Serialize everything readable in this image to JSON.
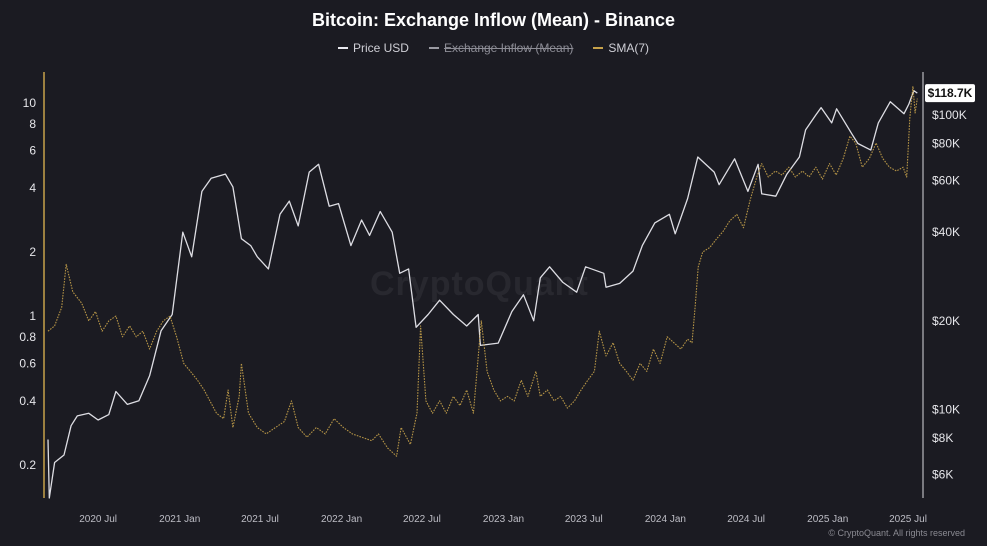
{
  "title": "Bitcoin: Exchange Inflow (Mean) - Binance",
  "legend": [
    {
      "label": "Price USD",
      "color": "#e8e8ee",
      "hidden": false
    },
    {
      "label": "Exchange Inflow (Mean)",
      "color": "#9a9aa2",
      "hidden": true
    },
    {
      "label": "SMA(7)",
      "color": "#c7a24a",
      "hidden": false
    }
  ],
  "watermark": "CryptoQuant",
  "copyright": "© CryptoQuant. All rights reserved",
  "colors": {
    "background": "#1b1b22",
    "price": "#e8e8ee",
    "sma": "#c7a24a",
    "axis_bar": "#c7a24a",
    "text": "#e6e6ea"
  },
  "chart_data": {
    "type": "line",
    "title": "Bitcoin: Exchange Inflow (Mean) - Binance",
    "grid": false,
    "legend_position": "top-center",
    "x_axis": {
      "range": [
        "2020-03",
        "2025-07"
      ],
      "tick_labels": [
        {
          "label": "2020 Jul",
          "date": "2020-07"
        },
        {
          "label": "2021 Jan",
          "date": "2021-01"
        },
        {
          "label": "2021 Jul",
          "date": "2021-07"
        },
        {
          "label": "2022 Jan",
          "date": "2022-01"
        },
        {
          "label": "2022 Jul",
          "date": "2022-07"
        },
        {
          "label": "2023 Jan",
          "date": "2023-01"
        },
        {
          "label": "2023 Jul",
          "date": "2023-07"
        },
        {
          "label": "2024 Jan",
          "date": "2024-01"
        },
        {
          "label": "2024 Jul",
          "date": "2024-07"
        },
        {
          "label": "2025 Jan",
          "date": "2025-01"
        },
        {
          "label": "2025 Jul",
          "date": "2025-07"
        }
      ]
    },
    "y_left": {
      "scale": "log",
      "range": [
        0.14,
        14
      ],
      "tick_labels": [
        {
          "label": "10",
          "value": 10
        },
        {
          "label": "8",
          "value": 8
        },
        {
          "label": "6",
          "value": 6
        },
        {
          "label": "4",
          "value": 4
        },
        {
          "label": "2",
          "value": 2
        },
        {
          "label": "1",
          "value": 1
        },
        {
          "label": "0.8",
          "value": 0.8
        },
        {
          "label": "0.6",
          "value": 0.6
        },
        {
          "label": "0.4",
          "value": 0.4
        },
        {
          "label": "0.2",
          "value": 0.2
        }
      ]
    },
    "y_right": {
      "scale": "log",
      "range": [
        5000,
        140000
      ],
      "tick_labels": [
        {
          "label": "$100K",
          "value": 100000
        },
        {
          "label": "$80K",
          "value": 80000
        },
        {
          "label": "$60K",
          "value": 60000
        },
        {
          "label": "$40K",
          "value": 40000
        },
        {
          "label": "$20K",
          "value": 20000
        },
        {
          "label": "$10K",
          "value": 10000
        },
        {
          "label": "$8K",
          "value": 8000
        },
        {
          "label": "$6K",
          "value": 6000
        }
      ],
      "last_value_label": "$118.7K",
      "last_value": 118700
    },
    "series": [
      {
        "name": "Price USD",
        "axis": "right",
        "points": [
          [
            "2020-03-10",
            7900
          ],
          [
            "2020-03-13",
            5000
          ],
          [
            "2020-03-25",
            6600
          ],
          [
            "2020-04-15",
            7000
          ],
          [
            "2020-05-01",
            8800
          ],
          [
            "2020-05-15",
            9500
          ],
          [
            "2020-06-10",
            9700
          ],
          [
            "2020-07-01",
            9200
          ],
          [
            "2020-07-25",
            9600
          ],
          [
            "2020-08-10",
            11500
          ],
          [
            "2020-09-05",
            10400
          ],
          [
            "2020-10-01",
            10700
          ],
          [
            "2020-10-25",
            13000
          ],
          [
            "2020-11-20",
            18500
          ],
          [
            "2020-12-15",
            21000
          ],
          [
            "2021-01-08",
            40000
          ],
          [
            "2021-01-28",
            33000
          ],
          [
            "2021-02-20",
            55000
          ],
          [
            "2021-03-13",
            61000
          ],
          [
            "2021-04-14",
            63000
          ],
          [
            "2021-05-01",
            57000
          ],
          [
            "2021-05-20",
            38000
          ],
          [
            "2021-06-10",
            36000
          ],
          [
            "2021-06-25",
            33000
          ],
          [
            "2021-07-20",
            30000
          ],
          [
            "2021-08-15",
            46000
          ],
          [
            "2021-09-05",
            51000
          ],
          [
            "2021-09-25",
            42000
          ],
          [
            "2021-10-20",
            64000
          ],
          [
            "2021-11-10",
            68000
          ],
          [
            "2021-12-04",
            49000
          ],
          [
            "2021-12-25",
            50000
          ],
          [
            "2022-01-22",
            36000
          ],
          [
            "2022-02-15",
            44000
          ],
          [
            "2022-03-05",
            39000
          ],
          [
            "2022-03-29",
            47000
          ],
          [
            "2022-04-25",
            40000
          ],
          [
            "2022-05-12",
            29000
          ],
          [
            "2022-06-01",
            30000
          ],
          [
            "2022-06-18",
            19000
          ],
          [
            "2022-07-15",
            21000
          ],
          [
            "2022-08-10",
            23500
          ],
          [
            "2022-09-10",
            21000
          ],
          [
            "2022-10-10",
            19200
          ],
          [
            "2022-11-05",
            21000
          ],
          [
            "2022-11-10",
            16500
          ],
          [
            "2022-12-20",
            16800
          ],
          [
            "2023-01-20",
            21500
          ],
          [
            "2023-02-15",
            24500
          ],
          [
            "2023-03-10",
            20000
          ],
          [
            "2023-03-25",
            28000
          ],
          [
            "2023-04-15",
            30500
          ],
          [
            "2023-05-15",
            27000
          ],
          [
            "2023-06-15",
            25000
          ],
          [
            "2023-07-05",
            30500
          ],
          [
            "2023-08-15",
            29000
          ],
          [
            "2023-08-20",
            26000
          ],
          [
            "2023-09-20",
            26800
          ],
          [
            "2023-10-20",
            29500
          ],
          [
            "2023-11-10",
            36000
          ],
          [
            "2023-12-08",
            43000
          ],
          [
            "2024-01-10",
            46000
          ],
          [
            "2024-01-23",
            39500
          ],
          [
            "2024-02-20",
            52000
          ],
          [
            "2024-03-14",
            72000
          ],
          [
            "2024-04-20",
            64000
          ],
          [
            "2024-05-01",
            58000
          ],
          [
            "2024-06-05",
            71000
          ],
          [
            "2024-07-05",
            55000
          ],
          [
            "2024-07-28",
            68000
          ],
          [
            "2024-08-05",
            54000
          ],
          [
            "2024-09-06",
            53000
          ],
          [
            "2024-10-01",
            63000
          ],
          [
            "2024-10-29",
            72000
          ],
          [
            "2024-11-12",
            89000
          ],
          [
            "2024-12-05",
            100000
          ],
          [
            "2024-12-17",
            106000
          ],
          [
            "2025-01-10",
            94000
          ],
          [
            "2025-01-21",
            105000
          ],
          [
            "2025-02-25",
            86000
          ],
          [
            "2025-03-10",
            80000
          ],
          [
            "2025-04-08",
            76000
          ],
          [
            "2025-04-25",
            94000
          ],
          [
            "2025-05-22",
            111000
          ],
          [
            "2025-06-22",
            101000
          ],
          [
            "2025-07-03",
            109000
          ],
          [
            "2025-07-14",
            121000
          ],
          [
            "2025-07-22",
            118700
          ]
        ]
      },
      {
        "name": "SMA(7)",
        "axis": "left",
        "points": [
          [
            "2020-03-10",
            0.85
          ],
          [
            "2020-03-25",
            0.9
          ],
          [
            "2020-04-10",
            1.1
          ],
          [
            "2020-04-20",
            1.75
          ],
          [
            "2020-05-05",
            1.3
          ],
          [
            "2020-05-25",
            1.15
          ],
          [
            "2020-06-10",
            0.95
          ],
          [
            "2020-06-25",
            1.05
          ],
          [
            "2020-07-10",
            0.85
          ],
          [
            "2020-07-25",
            0.95
          ],
          [
            "2020-08-10",
            1.0
          ],
          [
            "2020-08-25",
            0.8
          ],
          [
            "2020-09-10",
            0.9
          ],
          [
            "2020-09-25",
            0.8
          ],
          [
            "2020-10-10",
            0.85
          ],
          [
            "2020-10-25",
            0.7
          ],
          [
            "2020-11-10",
            0.85
          ],
          [
            "2020-11-25",
            0.95
          ],
          [
            "2020-12-10",
            1.0
          ],
          [
            "2020-12-25",
            0.8
          ],
          [
            "2021-01-10",
            0.6
          ],
          [
            "2021-01-25",
            0.55
          ],
          [
            "2021-02-10",
            0.5
          ],
          [
            "2021-02-25",
            0.45
          ],
          [
            "2021-03-10",
            0.4
          ],
          [
            "2021-03-25",
            0.35
          ],
          [
            "2021-04-10",
            0.33
          ],
          [
            "2021-04-20",
            0.45
          ],
          [
            "2021-05-01",
            0.3
          ],
          [
            "2021-05-15",
            0.42
          ],
          [
            "2021-05-20",
            0.6
          ],
          [
            "2021-06-05",
            0.35
          ],
          [
            "2021-06-25",
            0.3
          ],
          [
            "2021-07-15",
            0.28
          ],
          [
            "2021-08-05",
            0.3
          ],
          [
            "2021-08-25",
            0.32
          ],
          [
            "2021-09-10",
            0.4
          ],
          [
            "2021-09-25",
            0.3
          ],
          [
            "2021-10-15",
            0.27
          ],
          [
            "2021-11-05",
            0.3
          ],
          [
            "2021-11-25",
            0.28
          ],
          [
            "2021-12-15",
            0.33
          ],
          [
            "2022-01-05",
            0.3
          ],
          [
            "2022-01-25",
            0.28
          ],
          [
            "2022-02-15",
            0.27
          ],
          [
            "2022-03-10",
            0.26
          ],
          [
            "2022-03-25",
            0.28
          ],
          [
            "2022-04-15",
            0.24
          ],
          [
            "2022-05-05",
            0.22
          ],
          [
            "2022-05-15",
            0.3
          ],
          [
            "2022-06-05",
            0.25
          ],
          [
            "2022-06-20",
            0.35
          ],
          [
            "2022-06-28",
            0.9
          ],
          [
            "2022-07-10",
            0.4
          ],
          [
            "2022-07-25",
            0.35
          ],
          [
            "2022-08-10",
            0.4
          ],
          [
            "2022-08-25",
            0.35
          ],
          [
            "2022-09-10",
            0.42
          ],
          [
            "2022-09-25",
            0.38
          ],
          [
            "2022-10-10",
            0.45
          ],
          [
            "2022-10-25",
            0.35
          ],
          [
            "2022-11-12",
            0.95
          ],
          [
            "2022-11-25",
            0.55
          ],
          [
            "2022-12-10",
            0.45
          ],
          [
            "2022-12-25",
            0.4
          ],
          [
            "2023-01-10",
            0.42
          ],
          [
            "2023-01-25",
            0.4
          ],
          [
            "2023-02-10",
            0.5
          ],
          [
            "2023-02-25",
            0.42
          ],
          [
            "2023-03-15",
            0.55
          ],
          [
            "2023-03-25",
            0.42
          ],
          [
            "2023-04-10",
            0.45
          ],
          [
            "2023-04-25",
            0.4
          ],
          [
            "2023-05-10",
            0.42
          ],
          [
            "2023-05-25",
            0.37
          ],
          [
            "2023-06-10",
            0.4
          ],
          [
            "2023-06-25",
            0.45
          ],
          [
            "2023-07-10",
            0.5
          ],
          [
            "2023-07-25",
            0.55
          ],
          [
            "2023-08-05",
            0.85
          ],
          [
            "2023-08-20",
            0.65
          ],
          [
            "2023-09-05",
            0.75
          ],
          [
            "2023-09-20",
            0.6
          ],
          [
            "2023-10-05",
            0.55
          ],
          [
            "2023-10-20",
            0.5
          ],
          [
            "2023-11-05",
            0.6
          ],
          [
            "2023-11-20",
            0.55
          ],
          [
            "2023-12-05",
            0.7
          ],
          [
            "2023-12-20",
            0.6
          ],
          [
            "2024-01-05",
            0.8
          ],
          [
            "2024-01-20",
            0.75
          ],
          [
            "2024-02-05",
            0.7
          ],
          [
            "2024-02-20",
            0.78
          ],
          [
            "2024-03-01",
            0.75
          ],
          [
            "2024-03-08",
            1.1
          ],
          [
            "2024-03-15",
            1.7
          ],
          [
            "2024-03-25",
            2.0
          ],
          [
            "2024-04-10",
            2.1
          ],
          [
            "2024-04-25",
            2.3
          ],
          [
            "2024-05-10",
            2.5
          ],
          [
            "2024-05-25",
            2.8
          ],
          [
            "2024-06-10",
            3.0
          ],
          [
            "2024-06-25",
            2.6
          ],
          [
            "2024-07-10",
            3.5
          ],
          [
            "2024-07-25",
            4.5
          ],
          [
            "2024-08-05",
            5.2
          ],
          [
            "2024-08-20",
            4.5
          ],
          [
            "2024-09-05",
            4.8
          ],
          [
            "2024-09-20",
            4.6
          ],
          [
            "2024-10-05",
            5.0
          ],
          [
            "2024-10-20",
            4.5
          ],
          [
            "2024-11-05",
            4.8
          ],
          [
            "2024-11-20",
            4.5
          ],
          [
            "2024-12-05",
            5.0
          ],
          [
            "2024-12-20",
            4.4
          ],
          [
            "2025-01-05",
            5.2
          ],
          [
            "2025-01-20",
            4.6
          ],
          [
            "2025-02-05",
            5.5
          ],
          [
            "2025-02-20",
            7.0
          ],
          [
            "2025-03-05",
            6.5
          ],
          [
            "2025-03-20",
            5.0
          ],
          [
            "2025-04-05",
            5.5
          ],
          [
            "2025-04-20",
            6.5
          ],
          [
            "2025-05-05",
            5.5
          ],
          [
            "2025-05-20",
            5.0
          ],
          [
            "2025-06-05",
            4.8
          ],
          [
            "2025-06-20",
            5.0
          ],
          [
            "2025-06-28",
            4.5
          ],
          [
            "2025-07-05",
            8.5
          ],
          [
            "2025-07-12",
            12.0
          ],
          [
            "2025-07-17",
            9.0
          ],
          [
            "2025-07-22",
            10.5
          ]
        ]
      }
    ]
  }
}
